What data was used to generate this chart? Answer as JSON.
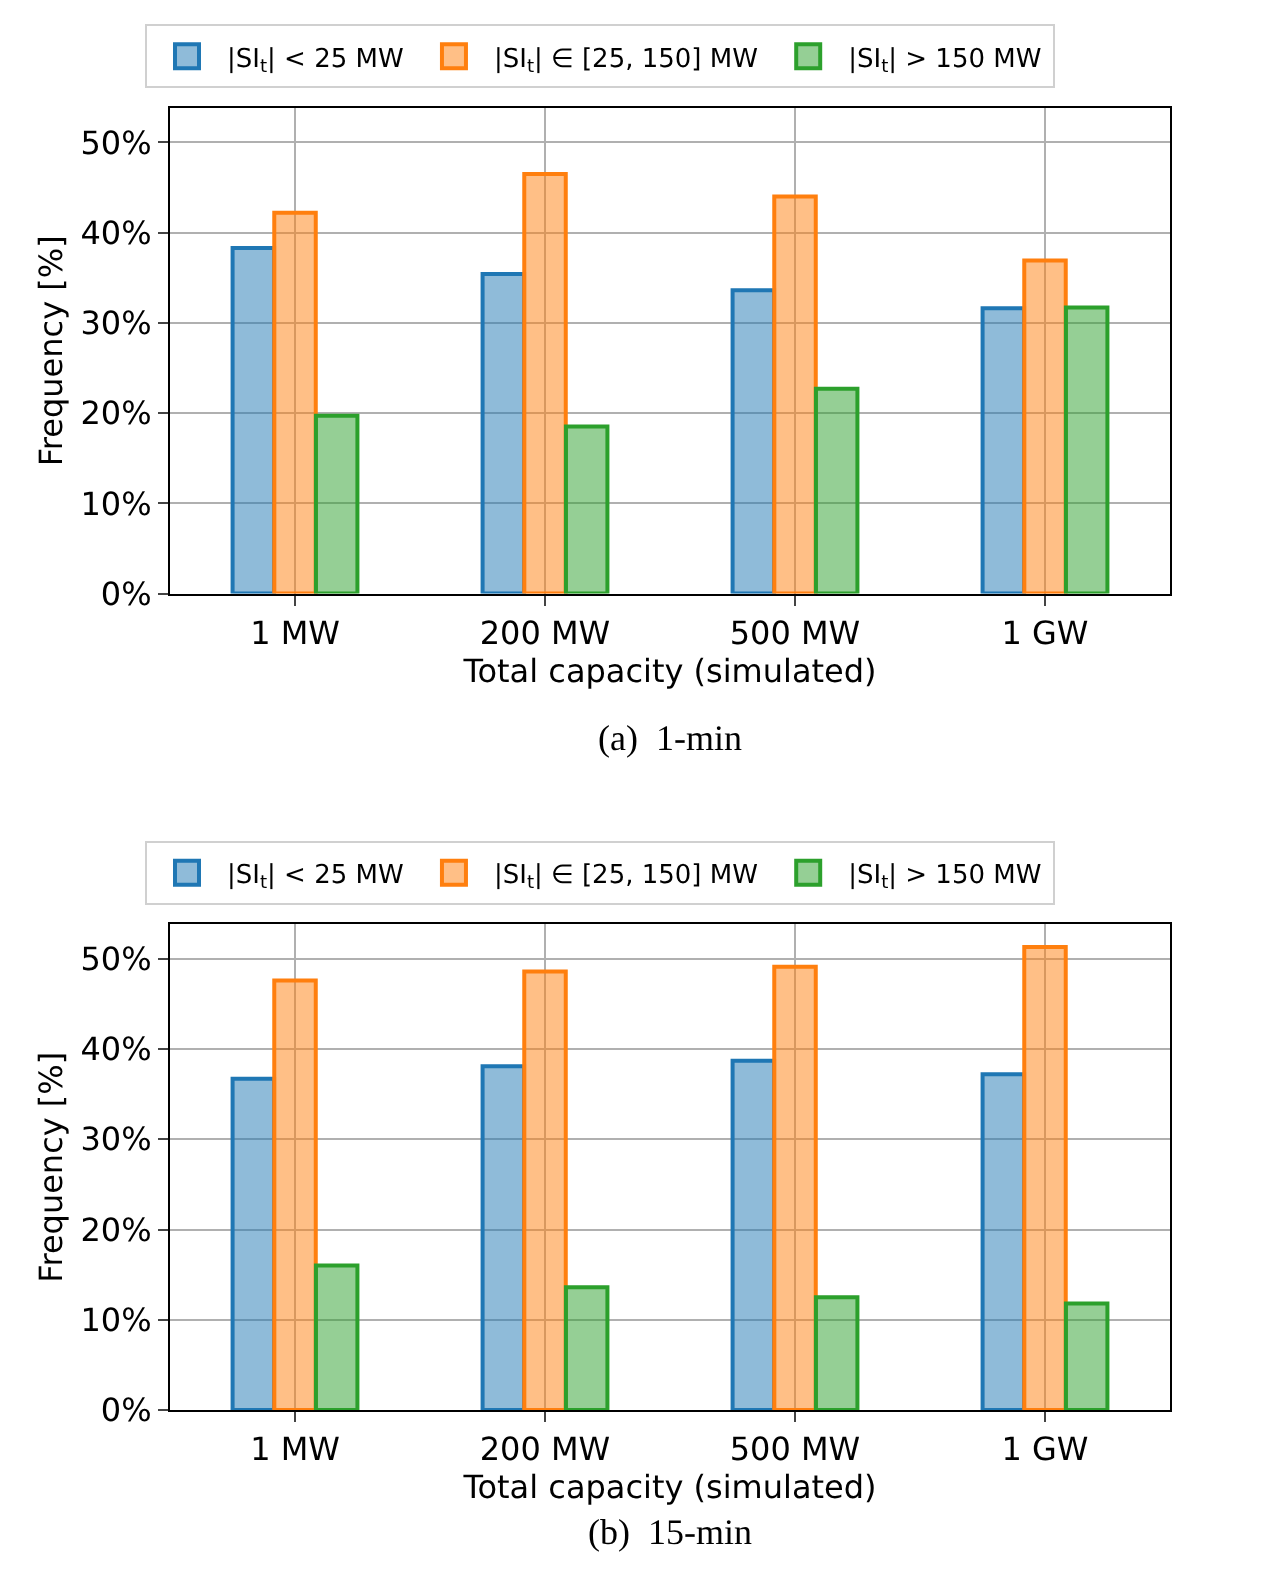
{
  "chart_data": [
    {
      "type": "bar",
      "xlabel": "Total capacity (simulated)",
      "ylabel": "Frequency [%]",
      "categories": [
        "1 MW",
        "200 MW",
        "500 MW",
        "1 GW"
      ],
      "series": [
        {
          "name": "|SI$_{t}$| < 25 MW",
          "color": "#1f77b4",
          "values": [
            38.3,
            35.4,
            33.6,
            31.6
          ]
        },
        {
          "name": "|SI$_{t}$| ∈ [25, 150] MW",
          "color": "#ff7f0e",
          "values": [
            42.2,
            46.5,
            44.0,
            36.9
          ]
        },
        {
          "name": "|SI$_{t}$| > 150 MW",
          "color": "#2ca02c",
          "values": [
            19.7,
            18.5,
            22.7,
            31.7
          ]
        }
      ],
      "ylim": [
        0,
        53.8
      ],
      "yticks": [
        {
          "value": 0,
          "label": "0%"
        },
        {
          "value": 10,
          "label": "10%"
        },
        {
          "value": 20,
          "label": "20%"
        },
        {
          "value": 30,
          "label": "30%"
        },
        {
          "value": 40,
          "label": "40%"
        },
        {
          "value": 50,
          "label": "50%"
        }
      ],
      "grid": true,
      "legend": "top",
      "annotations": [
        "(a)  1-min"
      ]
    },
    {
      "type": "bar",
      "xlabel": "Total capacity (simulated)",
      "ylabel": "Frequency [%]",
      "categories": [
        "1 MW",
        "200 MW",
        "500 MW",
        "1 GW"
      ],
      "series": [
        {
          "name": "|SI$_{t}$| < 25 MW",
          "color": "#1f77b4",
          "values": [
            36.7,
            38.1,
            38.7,
            37.2
          ]
        },
        {
          "name": "|SI$_{t}$| ∈ [25, 150] MW",
          "color": "#ff7f0e",
          "values": [
            47.6,
            48.6,
            49.1,
            51.3
          ]
        },
        {
          "name": "|SI$_{t}$| > 150 MW",
          "color": "#2ca02c",
          "values": [
            16.0,
            13.6,
            12.5,
            11.8
          ]
        }
      ],
      "ylim": [
        0,
        53.8
      ],
      "yticks": [
        {
          "value": 0,
          "label": "0%"
        },
        {
          "value": 10,
          "label": "10%"
        },
        {
          "value": 20,
          "label": "20%"
        },
        {
          "value": 30,
          "label": "30%"
        },
        {
          "value": 40,
          "label": "40%"
        },
        {
          "value": 50,
          "label": "50%"
        }
      ],
      "grid": true,
      "legend": "top",
      "annotations": [
        "(b)  15-min"
      ]
    }
  ]
}
